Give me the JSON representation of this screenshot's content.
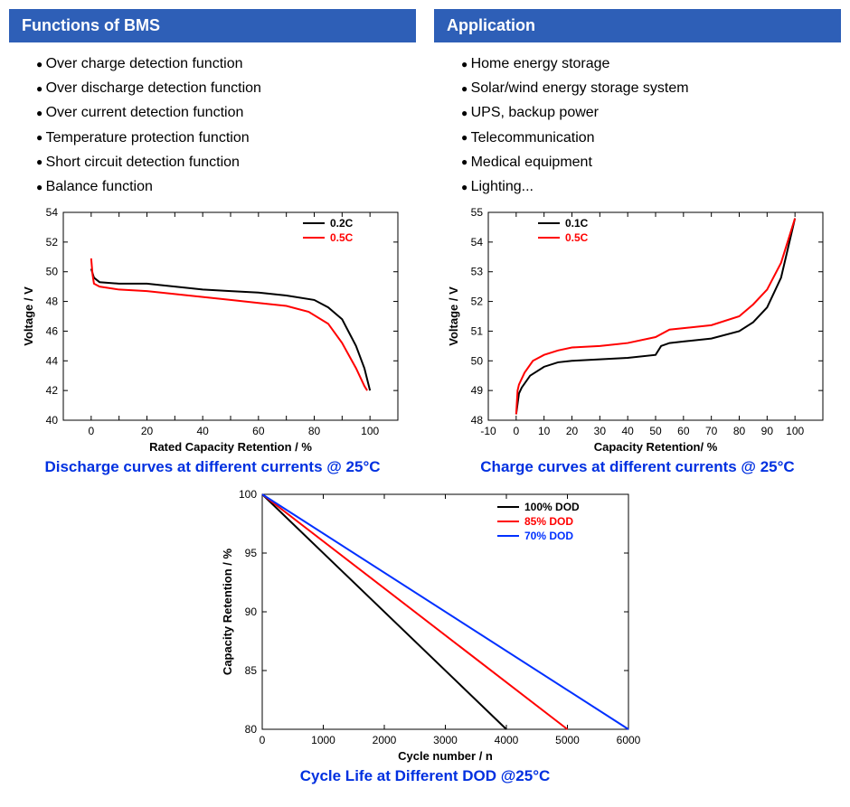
{
  "left": {
    "header": "Functions of BMS",
    "bullets": [
      "Over charge detection function",
      "Over discharge detection function",
      "Over current detection function",
      "Temperature protection function",
      "Short circuit detection function",
      "Balance function"
    ]
  },
  "right": {
    "header": "Application",
    "bullets": [
      "Home energy storage",
      "Solar/wind energy storage system",
      "UPS, backup power",
      "Telecommunication",
      "Medical equipment",
      "Lighting..."
    ]
  },
  "discharge_chart": {
    "caption": "Discharge curves at different currents @ 25°C",
    "xlabel": "Rated Capacity Retention / %",
    "ylabel": "Voltage / V",
    "xlim": [
      -10,
      110
    ],
    "xticks": [
      -10,
      0,
      10,
      20,
      30,
      40,
      50,
      60,
      70,
      80,
      90,
      100,
      110
    ],
    "xtick_labels": [
      "",
      "0",
      "",
      "20",
      "",
      "40",
      "",
      "60",
      "",
      "80",
      "",
      "100",
      ""
    ],
    "ylim": [
      40,
      54
    ],
    "yticks": [
      40,
      42,
      44,
      46,
      48,
      50,
      52,
      54
    ],
    "ytick_labels": [
      "40",
      "42",
      "44",
      "46",
      "48",
      "50",
      "52",
      "54"
    ],
    "legend": [
      {
        "label": "0.2C",
        "color": "#000000"
      },
      {
        "label": "0.5C",
        "color": "#ff0000"
      }
    ],
    "series": [
      {
        "color": "#000000",
        "points": [
          [
            0,
            50.2
          ],
          [
            1,
            49.6
          ],
          [
            3,
            49.3
          ],
          [
            10,
            49.2
          ],
          [
            20,
            49.2
          ],
          [
            30,
            49.0
          ],
          [
            40,
            48.8
          ],
          [
            50,
            48.7
          ],
          [
            60,
            48.6
          ],
          [
            70,
            48.4
          ],
          [
            80,
            48.1
          ],
          [
            85,
            47.6
          ],
          [
            90,
            46.8
          ],
          [
            95,
            45.0
          ],
          [
            98,
            43.5
          ],
          [
            100,
            42.0
          ]
        ]
      },
      {
        "color": "#ff0000",
        "points": [
          [
            0,
            50.9
          ],
          [
            0.5,
            49.8
          ],
          [
            1,
            49.2
          ],
          [
            3,
            49.0
          ],
          [
            10,
            48.8
          ],
          [
            20,
            48.7
          ],
          [
            30,
            48.5
          ],
          [
            40,
            48.3
          ],
          [
            50,
            48.1
          ],
          [
            60,
            47.9
          ],
          [
            70,
            47.7
          ],
          [
            78,
            47.3
          ],
          [
            85,
            46.5
          ],
          [
            90,
            45.2
          ],
          [
            95,
            43.5
          ],
          [
            98,
            42.3
          ],
          [
            99,
            42.0
          ]
        ]
      }
    ]
  },
  "charge_chart": {
    "caption": "Charge curves at different currents @ 25°C",
    "xlabel": "Capacity Retention/ %",
    "ylabel": "Voltage / V",
    "xlim": [
      -10,
      110
    ],
    "xticks": [
      -10,
      0,
      10,
      20,
      30,
      40,
      50,
      60,
      70,
      80,
      90,
      100,
      110
    ],
    "xtick_labels": [
      "-10",
      "0",
      "10",
      "20",
      "30",
      "40",
      "50",
      "60",
      "70",
      "80",
      "90",
      "100",
      ""
    ],
    "ylim": [
      48,
      55
    ],
    "yticks": [
      48,
      49,
      50,
      51,
      52,
      53,
      54,
      55
    ],
    "ytick_labels": [
      "48",
      "49",
      "50",
      "51",
      "52",
      "53",
      "54",
      "55"
    ],
    "legend": [
      {
        "label": "0.1C",
        "color": "#000000"
      },
      {
        "label": "0.5C",
        "color": "#ff0000"
      }
    ],
    "series": [
      {
        "color": "#000000",
        "points": [
          [
            0,
            48.2
          ],
          [
            1,
            48.9
          ],
          [
            2,
            49.1
          ],
          [
            5,
            49.5
          ],
          [
            10,
            49.8
          ],
          [
            15,
            49.95
          ],
          [
            20,
            50.0
          ],
          [
            30,
            50.05
          ],
          [
            40,
            50.1
          ],
          [
            50,
            50.2
          ],
          [
            52,
            50.5
          ],
          [
            55,
            50.6
          ],
          [
            60,
            50.65
          ],
          [
            70,
            50.75
          ],
          [
            80,
            51.0
          ],
          [
            85,
            51.3
          ],
          [
            90,
            51.8
          ],
          [
            95,
            52.8
          ],
          [
            98,
            54.0
          ],
          [
            100,
            54.8
          ]
        ]
      },
      {
        "color": "#ff0000",
        "points": [
          [
            0,
            48.2
          ],
          [
            0.5,
            49.0
          ],
          [
            1,
            49.2
          ],
          [
            3,
            49.6
          ],
          [
            6,
            50.0
          ],
          [
            10,
            50.2
          ],
          [
            15,
            50.35
          ],
          [
            20,
            50.45
          ],
          [
            30,
            50.5
          ],
          [
            40,
            50.6
          ],
          [
            50,
            50.8
          ],
          [
            55,
            51.05
          ],
          [
            60,
            51.1
          ],
          [
            70,
            51.2
          ],
          [
            80,
            51.5
          ],
          [
            85,
            51.9
          ],
          [
            90,
            52.4
          ],
          [
            95,
            53.3
          ],
          [
            98,
            54.2
          ],
          [
            100,
            54.8
          ]
        ]
      }
    ]
  },
  "cycle_chart": {
    "caption": "Cycle Life at Different DOD @25°C",
    "xlabel": "Cycle number / n",
    "ylabel": "Capacity Retention / %",
    "xlim": [
      0,
      6000
    ],
    "xticks": [
      0,
      1000,
      2000,
      3000,
      4000,
      5000,
      6000
    ],
    "xtick_labels": [
      "0",
      "1000",
      "2000",
      "3000",
      "4000",
      "5000",
      "6000"
    ],
    "ylim": [
      80,
      100
    ],
    "yticks": [
      80,
      85,
      90,
      95,
      100
    ],
    "ytick_labels": [
      "80",
      "85",
      "90",
      "95",
      "100"
    ],
    "legend": [
      {
        "label": "100% DOD",
        "color": "#000000"
      },
      {
        "label": "85% DOD",
        "color": "#ff0000"
      },
      {
        "label": "70% DOD",
        "color": "#0030ff"
      }
    ],
    "series": [
      {
        "color": "#000000",
        "points": [
          [
            0,
            100
          ],
          [
            4000,
            80
          ]
        ]
      },
      {
        "color": "#ff0000",
        "points": [
          [
            0,
            100
          ],
          [
            5000,
            80
          ]
        ]
      },
      {
        "color": "#0030ff",
        "points": [
          [
            0,
            100
          ],
          [
            6000,
            80
          ]
        ]
      }
    ]
  },
  "colors": {
    "header_bg": "#2e5fb7",
    "caption": "#0030e0"
  }
}
